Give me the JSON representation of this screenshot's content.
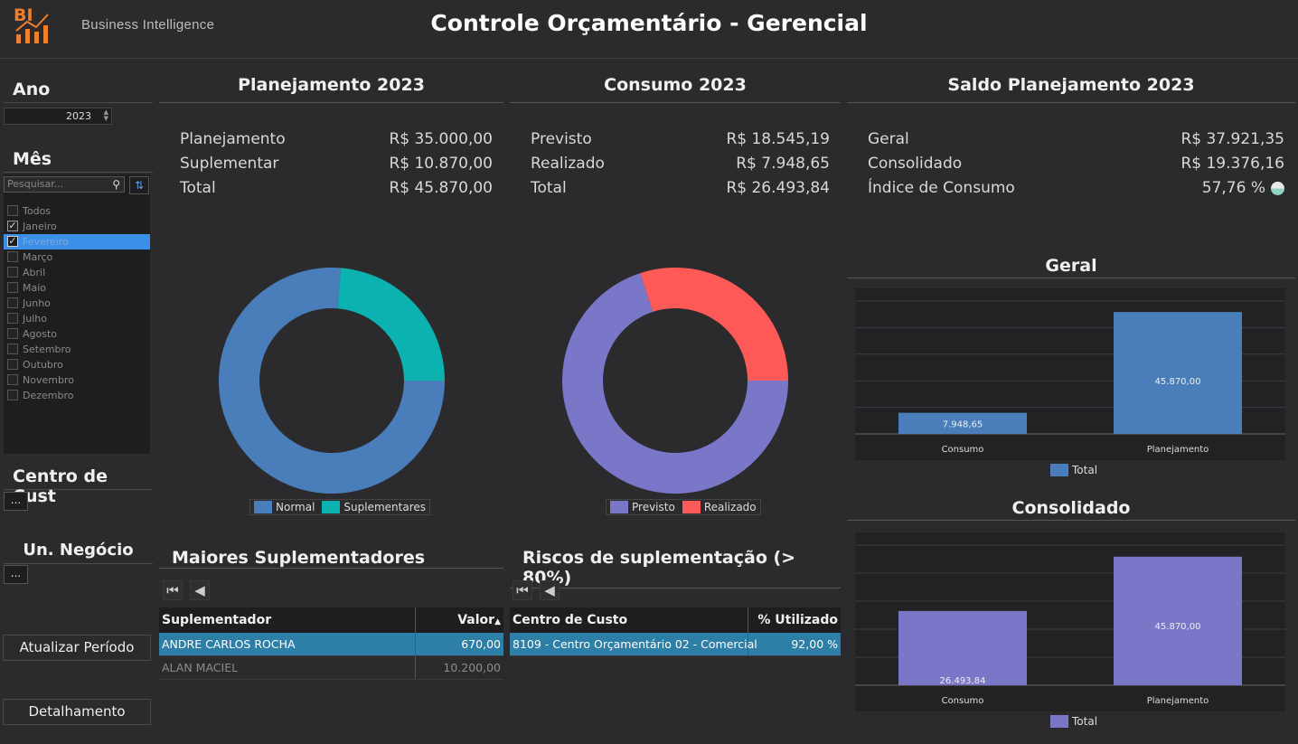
{
  "header": {
    "logo_mark": "BI",
    "logo_text": "Business Intelligence",
    "title": "Controle Orçamentário - Gerencial"
  },
  "filters": {
    "ano_label": "Ano",
    "ano_value": "2023",
    "mes_label": "Mês",
    "search_placeholder": "Pesquisar...",
    "months": [
      {
        "label": "Todos",
        "checked": false,
        "selected": false
      },
      {
        "label": "Janeiro",
        "checked": true,
        "selected": false
      },
      {
        "label": "Fevereiro",
        "checked": true,
        "selected": true
      },
      {
        "label": "Março",
        "checked": false,
        "selected": false
      },
      {
        "label": "Abril",
        "checked": false,
        "selected": false
      },
      {
        "label": "Maio",
        "checked": false,
        "selected": false
      },
      {
        "label": "Junho",
        "checked": false,
        "selected": false
      },
      {
        "label": "Julho",
        "checked": false,
        "selected": false
      },
      {
        "label": "Agosto",
        "checked": false,
        "selected": false
      },
      {
        "label": "Setembro",
        "checked": false,
        "selected": false
      },
      {
        "label": "Outubro",
        "checked": false,
        "selected": false
      },
      {
        "label": "Novembro",
        "checked": false,
        "selected": false
      },
      {
        "label": "Dezembro",
        "checked": false,
        "selected": false
      }
    ],
    "centro_label": "Centro de Cust",
    "un_label": "Un. Negócio",
    "dots": "...",
    "btn_atualizar": "Atualizar Período",
    "btn_detalhamento": "Detalhamento"
  },
  "planejamento": {
    "title": "Planejamento 2023",
    "rows": [
      {
        "label": "Planejamento",
        "value": "R$ 35.000,00"
      },
      {
        "label": "Suplementar",
        "value": "R$ 10.870,00"
      },
      {
        "label": "Total",
        "value": "R$ 45.870,00"
      }
    ]
  },
  "consumo": {
    "title": "Consumo 2023",
    "rows": [
      {
        "label": "Previsto",
        "value": "R$ 18.545,19"
      },
      {
        "label": "Realizado",
        "value": "R$ 7.948,65"
      },
      {
        "label": "Total",
        "value": "R$ 26.493,84"
      }
    ]
  },
  "saldo": {
    "title": "Saldo Planejamento 2023",
    "rows": [
      {
        "label": "Geral",
        "value": "R$ 37.921,35"
      },
      {
        "label": "Consolidado",
        "value": "R$ 19.376,16"
      },
      {
        "label": "Índice de Consumo",
        "value": "57,76 %"
      }
    ],
    "status_color": "#8fd3c0"
  },
  "colors": {
    "normal": "#4a7ebb",
    "suplementares": "#0bb2b0",
    "previsto": "#7a77c9",
    "realizado": "#ff5a57",
    "geral_bar": "#4a7ebb",
    "consolidado_bar": "#7a77c9"
  },
  "chart_data": [
    {
      "type": "pie",
      "name": "planejamento-donut",
      "labels": [
        "Normal",
        "Suplementares"
      ],
      "values": [
        35000,
        10870
      ]
    },
    {
      "type": "pie",
      "name": "consumo-donut",
      "labels": [
        "Previsto",
        "Realizado"
      ],
      "values": [
        18545.19,
        7948.65
      ]
    },
    {
      "type": "bar",
      "name": "geral",
      "title": "Geral",
      "categories": [
        "Consumo",
        "Planejamento"
      ],
      "series": [
        {
          "name": "Total",
          "values": [
            7948.65,
            45870.0
          ]
        }
      ],
      "data_labels": [
        "7.948,65",
        "45.870,00"
      ],
      "ylim": [
        0,
        50000
      ]
    },
    {
      "type": "bar",
      "name": "consolidado",
      "title": "Consolidado",
      "categories": [
        "Consumo",
        "Planejamento"
      ],
      "series": [
        {
          "name": "Total",
          "values": [
            26493.84,
            45870.0
          ]
        }
      ],
      "data_labels": [
        "26.493,84",
        "45.870,00"
      ],
      "ylim": [
        0,
        50000
      ]
    }
  ],
  "suplementadores": {
    "title": "Maiores Suplementadores",
    "col1": "Suplementador",
    "col2": "Valor",
    "sort_icon": "▲",
    "rows": [
      {
        "name": "ANDRE CARLOS ROCHA",
        "value": "670,00"
      },
      {
        "name": "ALAN MACIEL",
        "value": "10.200,00"
      }
    ]
  },
  "riscos": {
    "title": "Riscos de suplementação (> 80%)",
    "col1": "Centro de Custo",
    "col2": "% Utilizado",
    "rows": [
      {
        "name": "8109 - Centro Orçamentário 02 - Comercial",
        "value": "92,00 %"
      }
    ]
  }
}
